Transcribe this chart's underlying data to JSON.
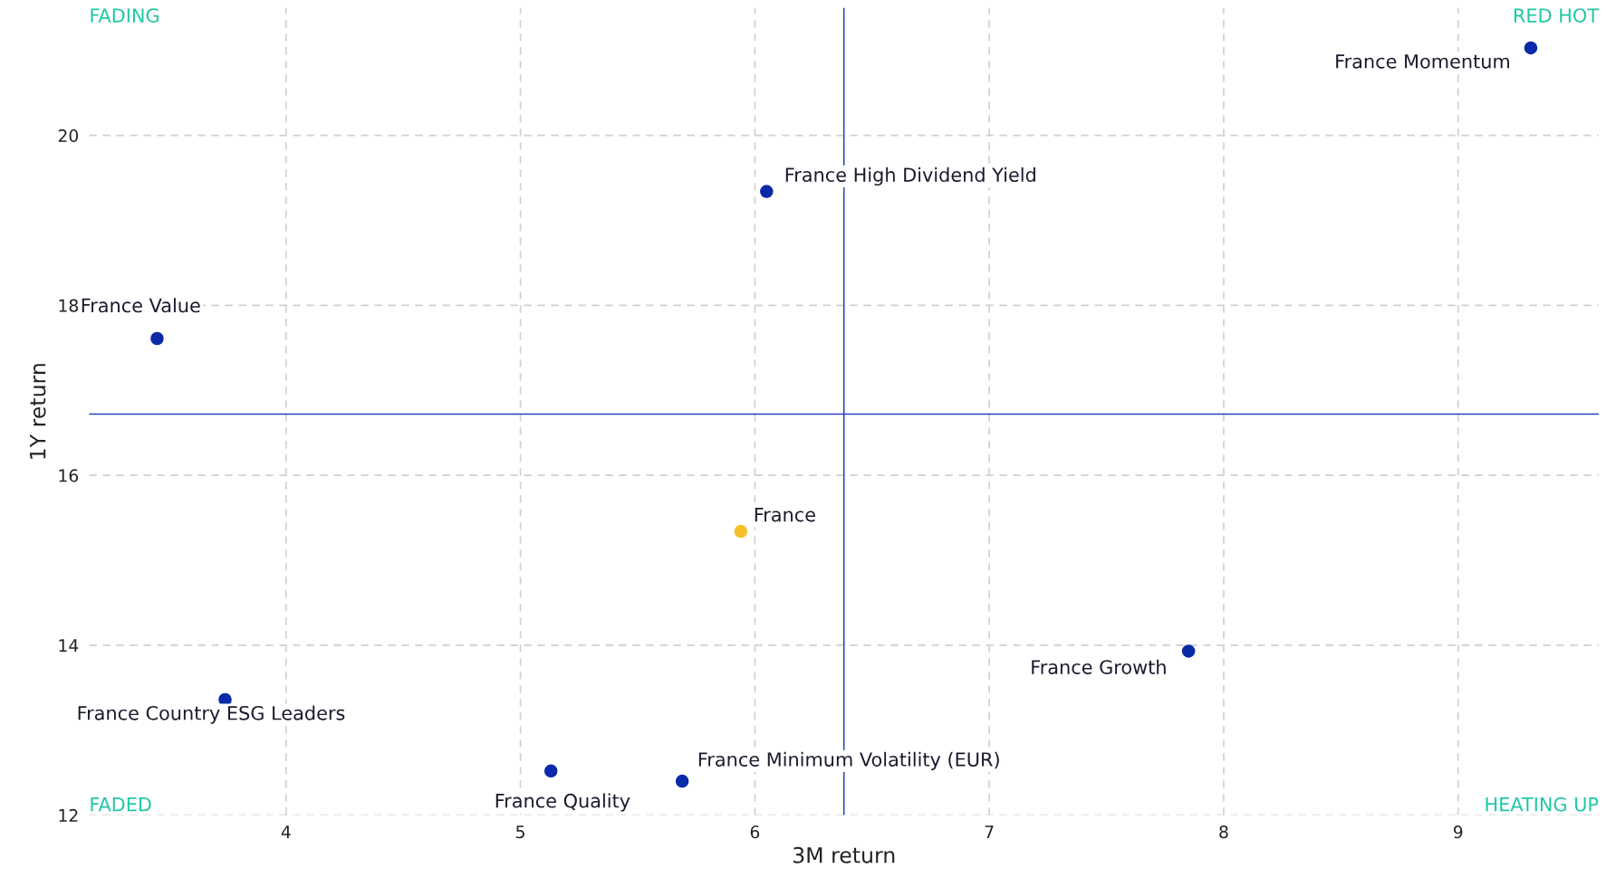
{
  "chart_data": {
    "type": "scatter",
    "xlabel": "3M return",
    "ylabel": "1Y return",
    "xlim": [
      3.16,
      9.6
    ],
    "ylim": [
      12,
      21.5
    ],
    "xticks": [
      4,
      5,
      6,
      7,
      8,
      9
    ],
    "yticks": [
      12,
      14,
      16,
      18,
      20
    ],
    "grid": true,
    "legend": false,
    "marker": "circle",
    "series": [
      {
        "name": "France Momentum",
        "color": "#0a2aa8",
        "x": [
          9.31
        ],
        "values": [
          21.03
        ]
      },
      {
        "name": "France High Dividend Yield",
        "color": "#0a2aa8",
        "x": [
          6.05
        ],
        "values": [
          19.34
        ]
      },
      {
        "name": "France Value",
        "color": "#0a2aa8",
        "x": [
          3.45
        ],
        "values": [
          17.61
        ]
      },
      {
        "name": "France",
        "color": "#f5c02a",
        "x": [
          5.94
        ],
        "values": [
          15.34
        ]
      },
      {
        "name": "France Growth",
        "color": "#0a2aa8",
        "x": [
          7.85
        ],
        "values": [
          13.93
        ]
      },
      {
        "name": "France Country ESG Leaders",
        "color": "#0a2aa8",
        "x": [
          3.74
        ],
        "values": [
          13.36
        ]
      },
      {
        "name": "France Quality",
        "color": "#0a2aa8",
        "x": [
          5.13
        ],
        "values": [
          12.52
        ]
      },
      {
        "name": "France Minimum Volatility (EUR)",
        "color": "#0a2aa8",
        "x": [
          5.69
        ],
        "values": [
          12.4
        ]
      }
    ],
    "ref_lines": [
      {
        "axis": "x",
        "value": 6.38,
        "color": "#2a3fc0"
      },
      {
        "axis": "y",
        "value": 16.72,
        "color": "#2a3fc0"
      }
    ],
    "annotations": [
      "FADING",
      "RED HOT",
      "FADED",
      "HEATING UP"
    ]
  }
}
